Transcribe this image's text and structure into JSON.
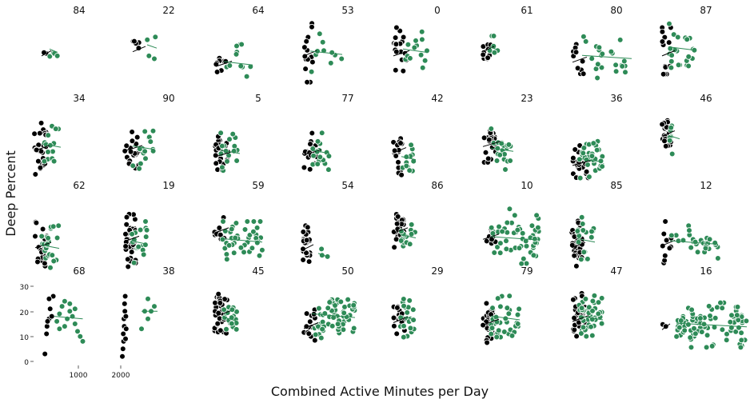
{
  "chart_data": {
    "type": "scatter",
    "title": "",
    "xlabel": "Combined Active Minutes per Day",
    "ylabel": "Deep Percent",
    "ylim": [
      0,
      32
    ],
    "yticks": [
      "0",
      "10",
      "20",
      "30"
    ],
    "xticks_panel_1": [
      "1000"
    ],
    "xticks_panel_2": [
      "2000"
    ],
    "grid": false,
    "colors": {
      "group_a": "#000000",
      "group_b": "#2e8b57",
      "marker_edge": "#ffffff",
      "fit_line": "#2e8b57"
    },
    "panel_titles": [
      "84",
      "22",
      "64",
      "53",
      "0",
      "61",
      "80",
      "87",
      "34",
      "90",
      "5",
      "77",
      "42",
      "23",
      "36",
      "46",
      "62",
      "19",
      "59",
      "54",
      "86",
      "10",
      "85",
      "12",
      "68",
      "38",
      "45",
      "50",
      "29",
      "79",
      "47",
      "16"
    ],
    "bottom_row_series": [
      {
        "panel": "68",
        "points_dark": [
          [
            220,
            3
          ],
          [
            250,
            11
          ],
          [
            260,
            14
          ],
          [
            300,
            17
          ],
          [
            320,
            21
          ],
          [
            350,
            18
          ],
          [
            380,
            26
          ],
          [
            300,
            25
          ],
          [
            270,
            16
          ]
        ],
        "points_green": [
          [
            450,
            16
          ],
          [
            500,
            19
          ],
          [
            550,
            22
          ],
          [
            600,
            14
          ],
          [
            650,
            17
          ],
          [
            700,
            20
          ],
          [
            750,
            18
          ],
          [
            800,
            15
          ],
          [
            850,
            12
          ],
          [
            900,
            10
          ],
          [
            950,
            8
          ],
          [
            600,
            24
          ],
          [
            700,
            23
          ],
          [
            500,
            13
          ],
          [
            800,
            21
          ]
        ],
        "fit": [
          [
            400,
            18
          ],
          [
            950,
            17
          ]
        ]
      },
      {
        "panel": "38",
        "points_dark": [
          [
            2000,
            2
          ],
          [
            2010,
            5
          ],
          [
            2020,
            8
          ],
          [
            2015,
            11
          ],
          [
            2030,
            14
          ],
          [
            2025,
            17
          ],
          [
            2040,
            20
          ],
          [
            2035,
            23
          ],
          [
            2045,
            26
          ],
          [
            2050,
            9
          ],
          [
            2055,
            18
          ],
          [
            2060,
            13
          ]
        ],
        "points_green": [
          [
            2300,
            13
          ],
          [
            2400,
            17
          ],
          [
            2450,
            20
          ],
          [
            2500,
            22
          ],
          [
            2400,
            25
          ],
          [
            2350,
            20
          ]
        ],
        "fit": [
          [
            2300,
            20
          ],
          [
            2550,
            20
          ]
        ]
      }
    ]
  }
}
